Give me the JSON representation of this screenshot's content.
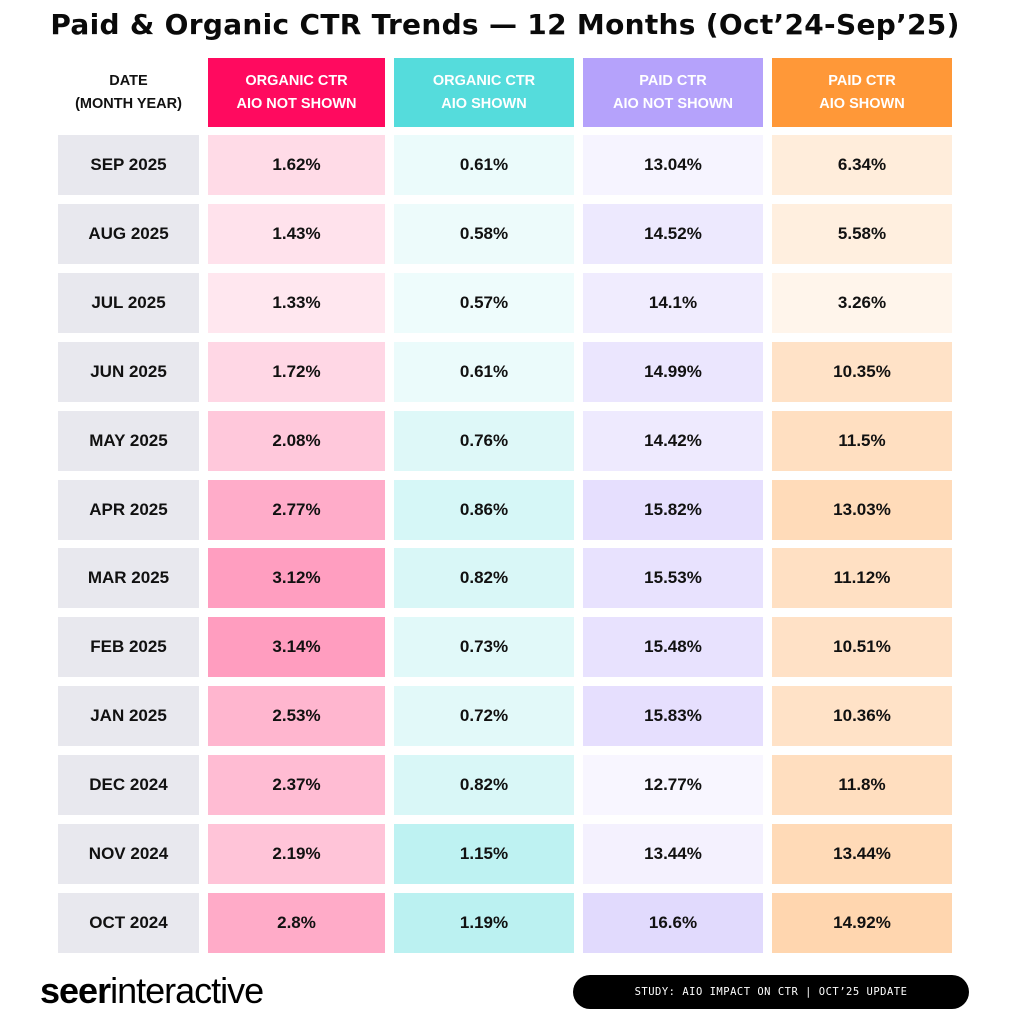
{
  "chart_data": {
    "type": "table",
    "title": "Paid & Organic CTR Trends — 12 Months (Oct’24-Sep’25)",
    "columns": [
      {
        "line1": "DATE",
        "line2": "(MONTH YEAR)",
        "color": "#e8e8ee"
      },
      {
        "line1": "ORGANIC CTR",
        "line2": "AIO NOT SHOWN",
        "color": "#ff0a5f"
      },
      {
        "line1": "ORGANIC CTR",
        "line2": "AIO SHOWN",
        "color": "#55dcdc"
      },
      {
        "line1": "PAID CTR",
        "line2": "AIO NOT SHOWN",
        "color": "#b5a2fb"
      },
      {
        "line1": "PAID CTR",
        "line2": "AIO SHOWN",
        "color": "#ff9838"
      }
    ],
    "rows": [
      [
        "SEP 2025",
        "1.62%",
        "0.61%",
        "13.04%",
        "6.34%"
      ],
      [
        "AUG 2025",
        "1.43%",
        "0.58%",
        "14.52%",
        "5.58%"
      ],
      [
        "JUL 2025",
        "1.33%",
        "0.57%",
        "14.1%",
        "3.26%"
      ],
      [
        "JUN 2025",
        "1.72%",
        "0.61%",
        "14.99%",
        "10.35%"
      ],
      [
        "MAY 2025",
        "2.08%",
        "0.76%",
        "14.42%",
        "11.5%"
      ],
      [
        "APR 2025",
        "2.77%",
        "0.86%",
        "15.82%",
        "13.03%"
      ],
      [
        "MAR 2025",
        "3.12%",
        "0.82%",
        "15.53%",
        "11.12%"
      ],
      [
        "FEB 2025",
        "3.14%",
        "0.73%",
        "15.48%",
        "10.51%"
      ],
      [
        "JAN 2025",
        "2.53%",
        "0.72%",
        "15.83%",
        "10.36%"
      ],
      [
        "DEC 2024",
        "2.37%",
        "0.82%",
        "12.77%",
        "11.8%"
      ],
      [
        "NOV 2024",
        "2.19%",
        "1.15%",
        "13.44%",
        "13.44%"
      ],
      [
        "OCT 2024",
        "2.8%",
        "1.19%",
        "16.6%",
        "14.92%"
      ]
    ],
    "encoding": "cell shade intensity increases with value within each column"
  },
  "footer": {
    "logo": "seerinteractive",
    "logo_bold": "seer",
    "logo_light": "interactive",
    "badge": "STUDY: AIO IMPACT ON CTR | OCT’25 UPDATE"
  }
}
